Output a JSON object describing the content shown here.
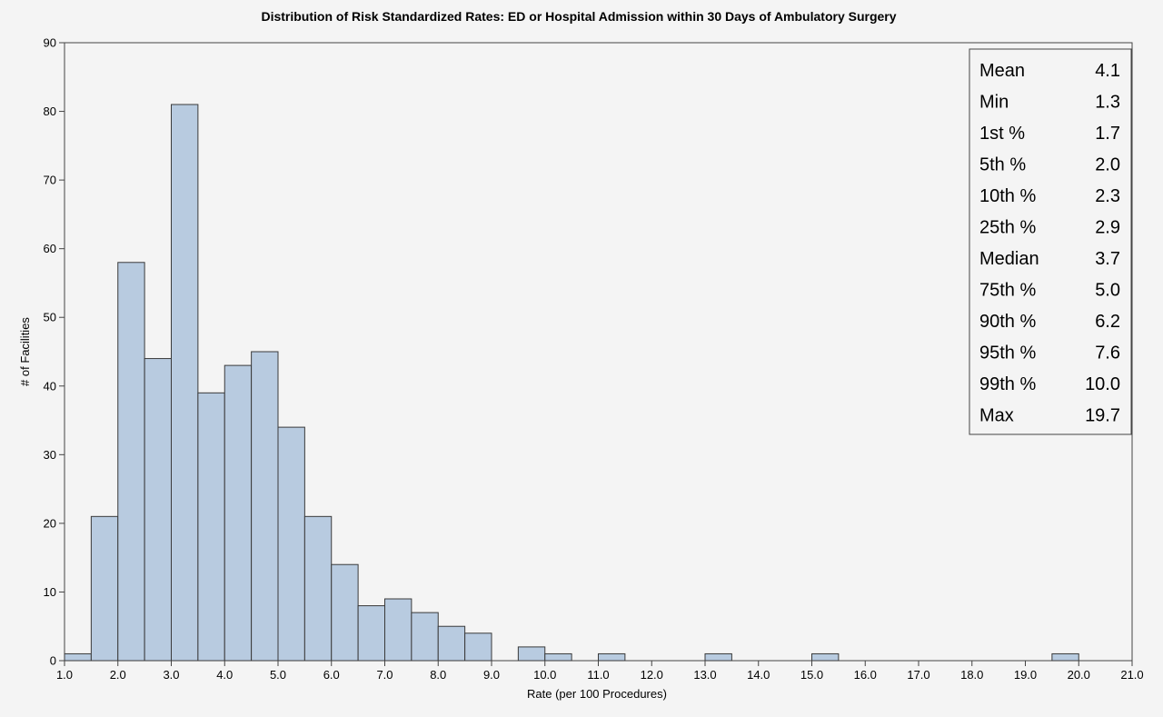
{
  "chart_data": {
    "type": "bar",
    "title": "Distribution of Risk Standardized Rates: ED or Hospital Admission within 30 Days of Ambulatory Surgery",
    "xlabel": "Rate (per 100 Procedures)",
    "ylabel": "# of Facilities",
    "xlim": [
      1.0,
      21.0
    ],
    "ylim": [
      0,
      90
    ],
    "bin_width": 0.5,
    "x_ticks": [
      "1.0",
      "2.0",
      "3.0",
      "4.0",
      "5.0",
      "6.0",
      "7.0",
      "8.0",
      "9.0",
      "10.0",
      "11.0",
      "12.0",
      "13.0",
      "14.0",
      "15.0",
      "16.0",
      "17.0",
      "18.0",
      "19.0",
      "20.0",
      "21.0"
    ],
    "y_ticks": [
      "0",
      "10",
      "20",
      "30",
      "40",
      "50",
      "60",
      "70",
      "80",
      "90"
    ],
    "bins": [
      {
        "x0": 1.0,
        "value": 1
      },
      {
        "x0": 1.5,
        "value": 21
      },
      {
        "x0": 2.0,
        "value": 58
      },
      {
        "x0": 2.5,
        "value": 44
      },
      {
        "x0": 3.0,
        "value": 81
      },
      {
        "x0": 3.5,
        "value": 39
      },
      {
        "x0": 4.0,
        "value": 43
      },
      {
        "x0": 4.5,
        "value": 45
      },
      {
        "x0": 5.0,
        "value": 34
      },
      {
        "x0": 5.5,
        "value": 21
      },
      {
        "x0": 6.0,
        "value": 14
      },
      {
        "x0": 6.5,
        "value": 8
      },
      {
        "x0": 7.0,
        "value": 9
      },
      {
        "x0": 7.5,
        "value": 7
      },
      {
        "x0": 8.0,
        "value": 5
      },
      {
        "x0": 8.5,
        "value": 4
      },
      {
        "x0": 9.5,
        "value": 2
      },
      {
        "x0": 10.0,
        "value": 1
      },
      {
        "x0": 11.0,
        "value": 1
      },
      {
        "x0": 13.0,
        "value": 1
      },
      {
        "x0": 15.0,
        "value": 1
      },
      {
        "x0": 19.5,
        "value": 1
      }
    ],
    "bar_color": "#b8cbe0",
    "bar_stroke": "#3a3a3a",
    "grid": false,
    "stats_legend_position": "top-right",
    "stats": [
      {
        "label": "Mean",
        "value": "4.1"
      },
      {
        "label": "Min",
        "value": "1.3"
      },
      {
        "label": "1st %",
        "value": "1.7"
      },
      {
        "label": "5th %",
        "value": "2.0"
      },
      {
        "label": "10th %",
        "value": "2.3"
      },
      {
        "label": "25th %",
        "value": "2.9"
      },
      {
        "label": "Median",
        "value": "3.7"
      },
      {
        "label": "75th %",
        "value": "5.0"
      },
      {
        "label": "90th %",
        "value": "6.2"
      },
      {
        "label": "95th %",
        "value": "7.6"
      },
      {
        "label": "99th %",
        "value": "10.0"
      },
      {
        "label": "Max",
        "value": "19.7"
      }
    ]
  }
}
